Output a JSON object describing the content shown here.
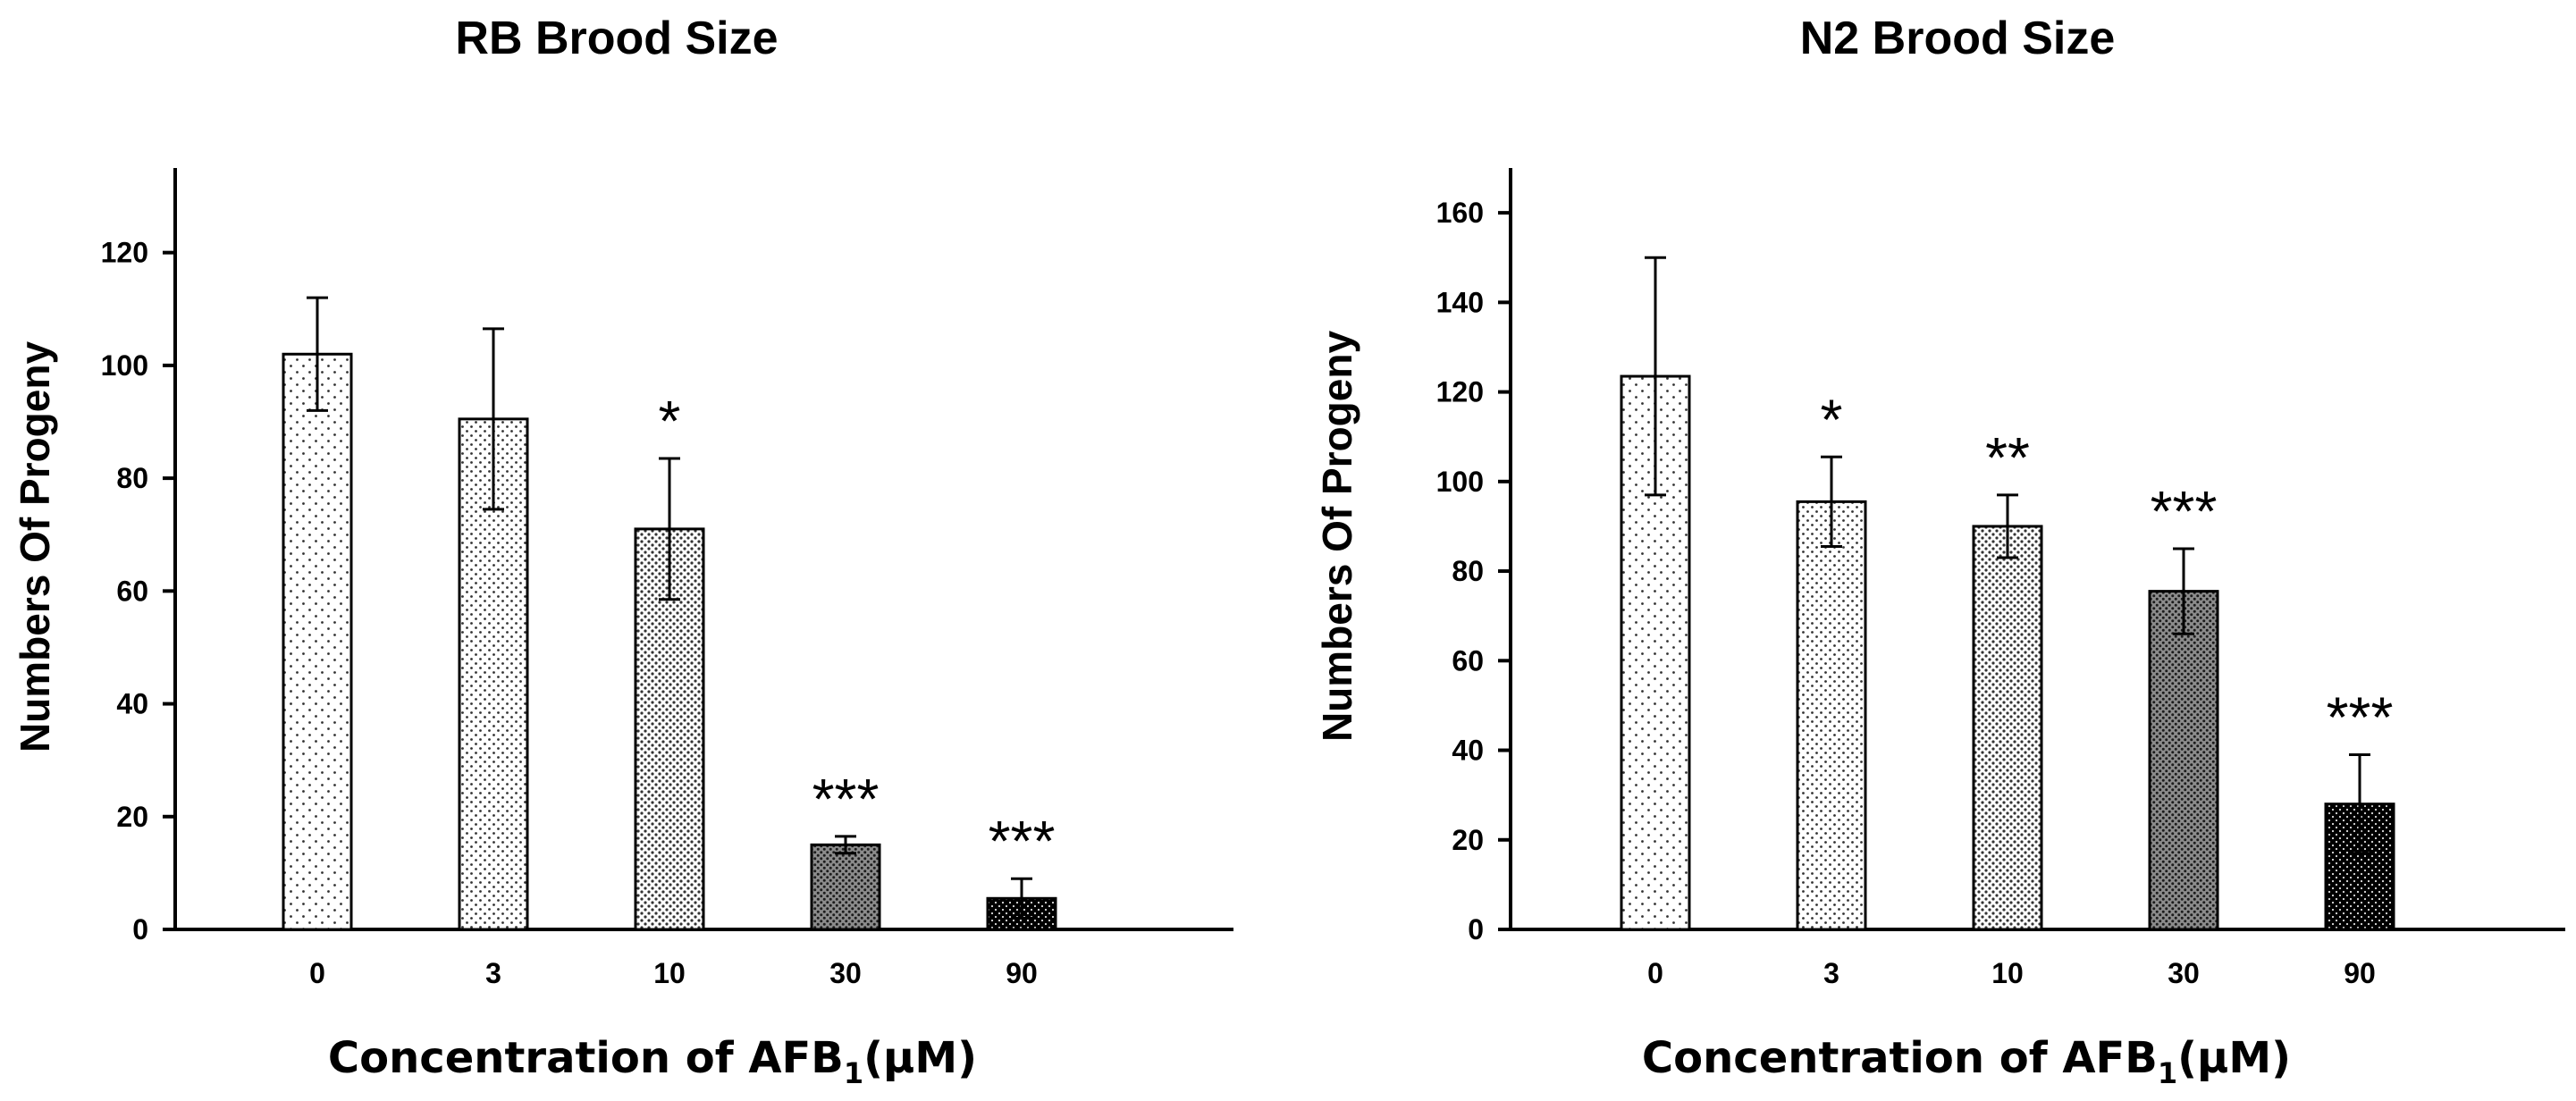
{
  "chart_data": [
    {
      "type": "bar",
      "title": "RB Brood Size",
      "ylabel": "Numbers Of Progeny",
      "xlabel": "Concentration of AFB",
      "xlabel_sub": "1",
      "xlabel_unit": "(μM)",
      "categories": [
        "0",
        "3",
        "10",
        "30",
        "90"
      ],
      "values": [
        102,
        90.5,
        71,
        15,
        5.5
      ],
      "errors": [
        10,
        16,
        12.5,
        1.5,
        3.5
      ],
      "significance": [
        "",
        "",
        "*",
        "***",
        "***"
      ],
      "patterns": [
        "dots-sparse",
        "dots-medium",
        "dots-dense",
        "dots-heavy",
        "dots-black"
      ],
      "ylim": [
        0,
        135
      ],
      "yticks": [
        0,
        20,
        40,
        60,
        80,
        100,
        120
      ]
    },
    {
      "type": "bar",
      "title": "N2 Brood Size",
      "ylabel": "Numbers Of Progeny",
      "xlabel": "Concentration of AFB",
      "xlabel_sub": "1",
      "xlabel_unit": "(μM)",
      "categories": [
        "0",
        "3",
        "10",
        "30",
        "90"
      ],
      "values": [
        123.5,
        95.5,
        90,
        75.5,
        28
      ],
      "errors": [
        26.5,
        10,
        7,
        9.5,
        11
      ],
      "significance": [
        "",
        "*",
        "**",
        "***",
        "***"
      ],
      "patterns": [
        "dots-sparse",
        "dots-medium",
        "dots-dense",
        "dots-heavy",
        "dots-black"
      ],
      "ylim": [
        0,
        170
      ],
      "yticks": [
        0,
        20,
        40,
        60,
        80,
        100,
        120,
        140,
        160
      ]
    }
  ]
}
